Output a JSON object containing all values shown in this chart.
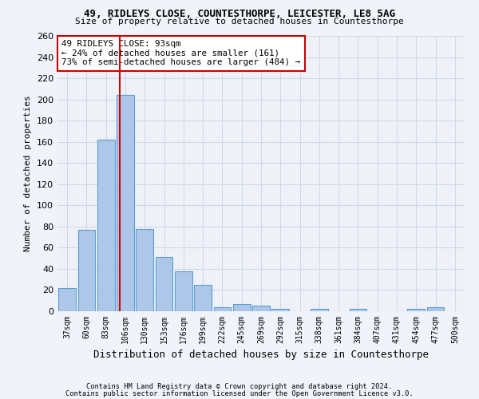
{
  "title1": "49, RIDLEYS CLOSE, COUNTESTHORPE, LEICESTER, LE8 5AG",
  "title2": "Size of property relative to detached houses in Countesthorpe",
  "xlabel": "Distribution of detached houses by size in Countesthorpe",
  "ylabel": "Number of detached properties",
  "footnote1": "Contains HM Land Registry data © Crown copyright and database right 2024.",
  "footnote2": "Contains public sector information licensed under the Open Government Licence v3.0.",
  "bar_labels": [
    "37sqm",
    "60sqm",
    "83sqm",
    "106sqm",
    "130sqm",
    "153sqm",
    "176sqm",
    "199sqm",
    "222sqm",
    "245sqm",
    "269sqm",
    "292sqm",
    "315sqm",
    "338sqm",
    "361sqm",
    "384sqm",
    "407sqm",
    "431sqm",
    "454sqm",
    "477sqm",
    "500sqm"
  ],
  "bar_values": [
    22,
    77,
    162,
    204,
    78,
    51,
    38,
    25,
    4,
    7,
    5,
    2,
    0,
    2,
    0,
    2,
    0,
    0,
    2,
    4,
    0
  ],
  "bar_color": "#aec6e8",
  "bar_edge_color": "#5a9fd4",
  "bar_edge_width": 0.8,
  "grid_color": "#d0d8e8",
  "bg_color": "#eef2f8",
  "fig_bg_color": "#f0f4fa",
  "red_line_x": 2.72,
  "annotation_text": "49 RIDLEYS CLOSE: 93sqm\n← 24% of detached houses are smaller (161)\n73% of semi-detached houses are larger (484) →",
  "annotation_box_color": "#ffffff",
  "annotation_box_edge_color": "#cc0000",
  "ylim": [
    0,
    260
  ],
  "yticks": [
    0,
    20,
    40,
    60,
    80,
    100,
    120,
    140,
    160,
    180,
    200,
    220,
    240,
    260
  ]
}
